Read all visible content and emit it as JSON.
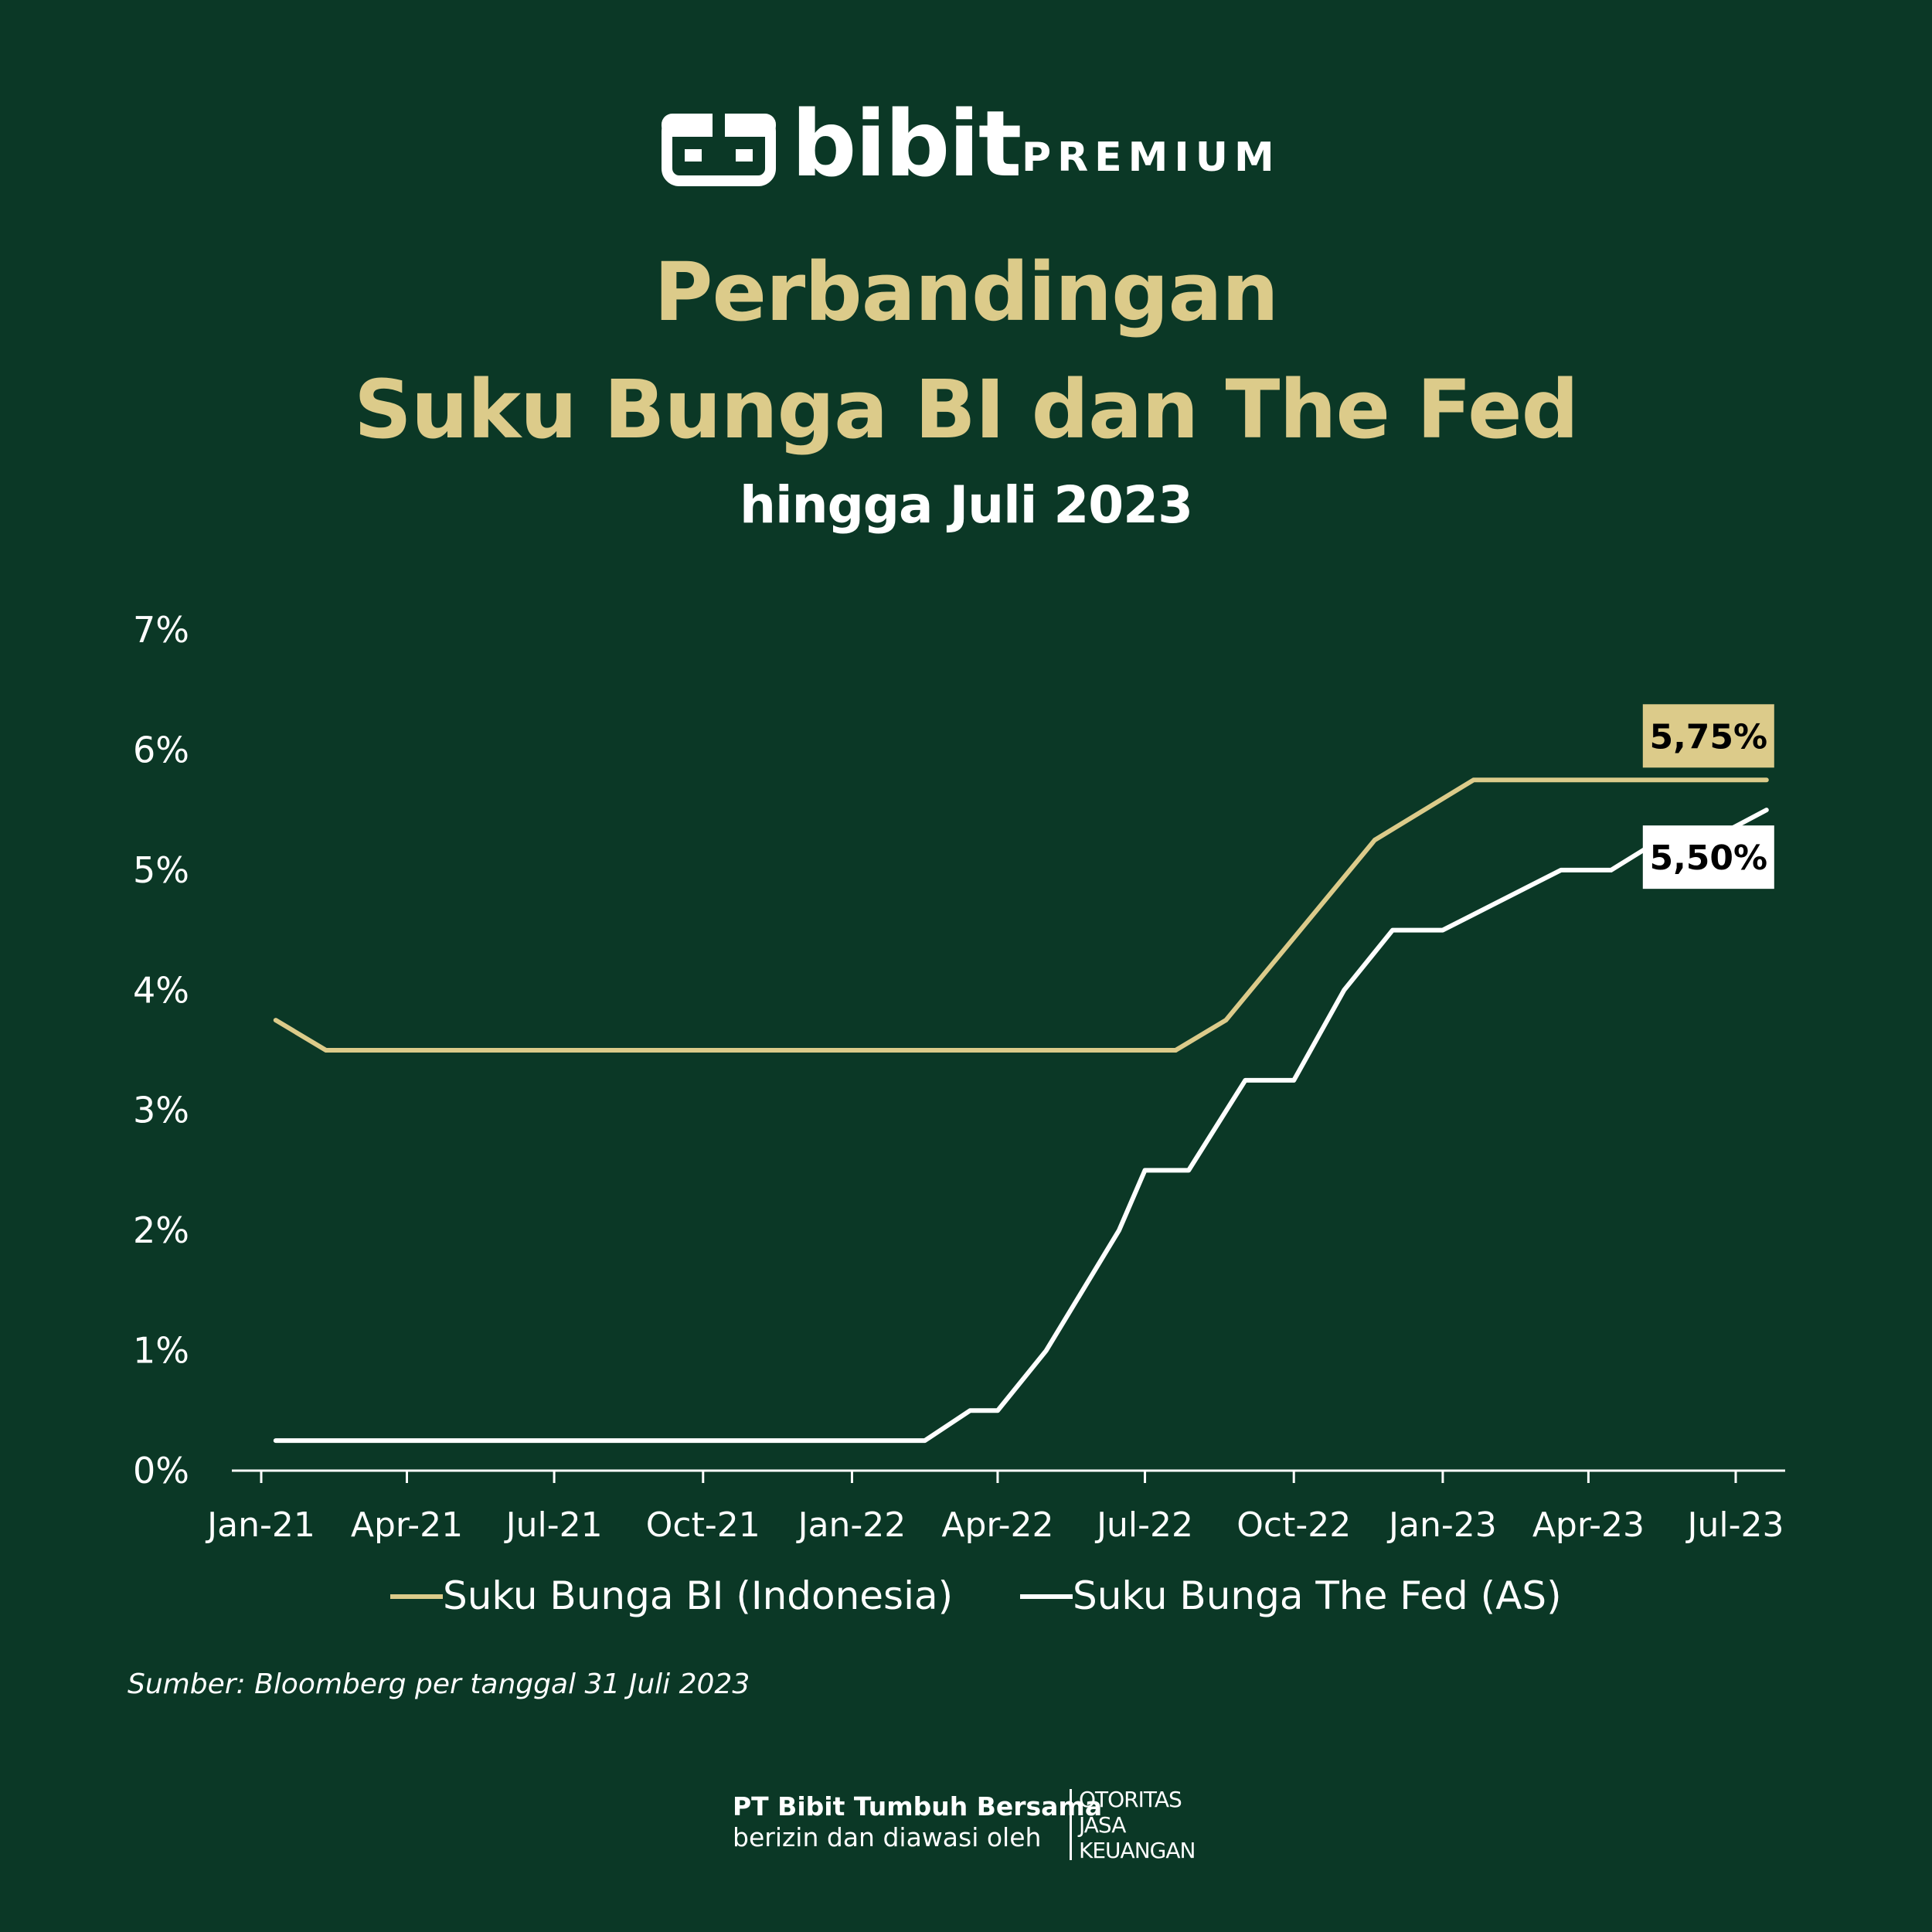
{
  "brand": {
    "name": "bibit",
    "tier": "PREMIUM",
    "logo_icon": "bibit-box-icon"
  },
  "header": {
    "title_line1": "Perbandingan",
    "title_line2": "Suku Bunga BI dan The Fed",
    "subtitle": "hingga Juli 2023"
  },
  "colors": {
    "background": "#0b3826",
    "bi_series": "#dccb8a",
    "fed_series": "#ffffff",
    "title": "#dccb8a",
    "text": "#ffffff"
  },
  "chart_data": {
    "type": "line",
    "title": "Perbandingan Suku Bunga BI dan The Fed",
    "subtitle": "hingga Juli 2023",
    "xlabel": "",
    "ylabel": "",
    "x_range": [
      "2021-01-01",
      "2023-07-31"
    ],
    "ylim": [
      0,
      7
    ],
    "y_ticks": [
      "0%",
      "1%",
      "2%",
      "3%",
      "4%",
      "5%",
      "6%",
      "7%"
    ],
    "y_tick_values": [
      0,
      1,
      2,
      3,
      4,
      5,
      6,
      7
    ],
    "x_ticks": [
      {
        "label": "Jan-21",
        "date": "2021-01-01"
      },
      {
        "label": "Apr-21",
        "date": "2021-04-01"
      },
      {
        "label": "Jul-21",
        "date": "2021-07-01"
      },
      {
        "label": "Oct-21",
        "date": "2021-10-01"
      },
      {
        "label": "Jan-22",
        "date": "2022-01-01"
      },
      {
        "label": "Apr-22",
        "date": "2022-04-01"
      },
      {
        "label": "Jul-22",
        "date": "2022-07-01"
      },
      {
        "label": "Oct-22",
        "date": "2022-10-01"
      },
      {
        "label": "Jan-23",
        "date": "2023-01-01"
      },
      {
        "label": "Apr-23",
        "date": "2023-04-01"
      },
      {
        "label": "Jul-23",
        "date": "2023-07-01"
      }
    ],
    "grid": false,
    "legend_position": "bottom",
    "series": [
      {
        "name": "Suku Bunga BI (Indonesia)",
        "color": "#dccb8a",
        "end_label": "5,75%",
        "points": [
          {
            "date": "2021-01-10",
            "value": 3.75
          },
          {
            "date": "2021-02-10",
            "value": 3.5
          },
          {
            "date": "2022-07-20",
            "value": 3.5
          },
          {
            "date": "2022-08-20",
            "value": 3.75
          },
          {
            "date": "2022-11-20",
            "value": 5.25
          },
          {
            "date": "2023-01-20",
            "value": 5.75
          },
          {
            "date": "2023-07-20",
            "value": 5.75
          }
        ]
      },
      {
        "name": "Suku Bunga The Fed (AS)",
        "color": "#ffffff",
        "end_label": "5,50%",
        "points": [
          {
            "date": "2021-01-10",
            "value": 0.25
          },
          {
            "date": "2022-02-15",
            "value": 0.25
          },
          {
            "date": "2022-03-15",
            "value": 0.5
          },
          {
            "date": "2022-04-01",
            "value": 0.5
          },
          {
            "date": "2022-05-01",
            "value": 1.0
          },
          {
            "date": "2022-06-15",
            "value": 2.0
          },
          {
            "date": "2022-07-01",
            "value": 2.5
          },
          {
            "date": "2022-07-28",
            "value": 2.5
          },
          {
            "date": "2022-09-01",
            "value": 3.25
          },
          {
            "date": "2022-10-01",
            "value": 3.25
          },
          {
            "date": "2022-11-01",
            "value": 4.0
          },
          {
            "date": "2022-12-01",
            "value": 4.5
          },
          {
            "date": "2023-01-01",
            "value": 4.5
          },
          {
            "date": "2023-03-15",
            "value": 5.0
          },
          {
            "date": "2023-04-15",
            "value": 5.0
          },
          {
            "date": "2023-05-15",
            "value": 5.25
          },
          {
            "date": "2023-06-15",
            "value": 5.25
          },
          {
            "date": "2023-07-20",
            "value": 5.5
          }
        ]
      }
    ]
  },
  "source": "Sumber: Bloomberg per tanggal 31 Juli 2023",
  "footer": {
    "company": "PT Bibit Tumbuh Bersama",
    "supervised": "berizin dan diawasi oleh",
    "regulator_lines": [
      "OTORITAS",
      "JASA",
      "KEUANGAN"
    ]
  }
}
